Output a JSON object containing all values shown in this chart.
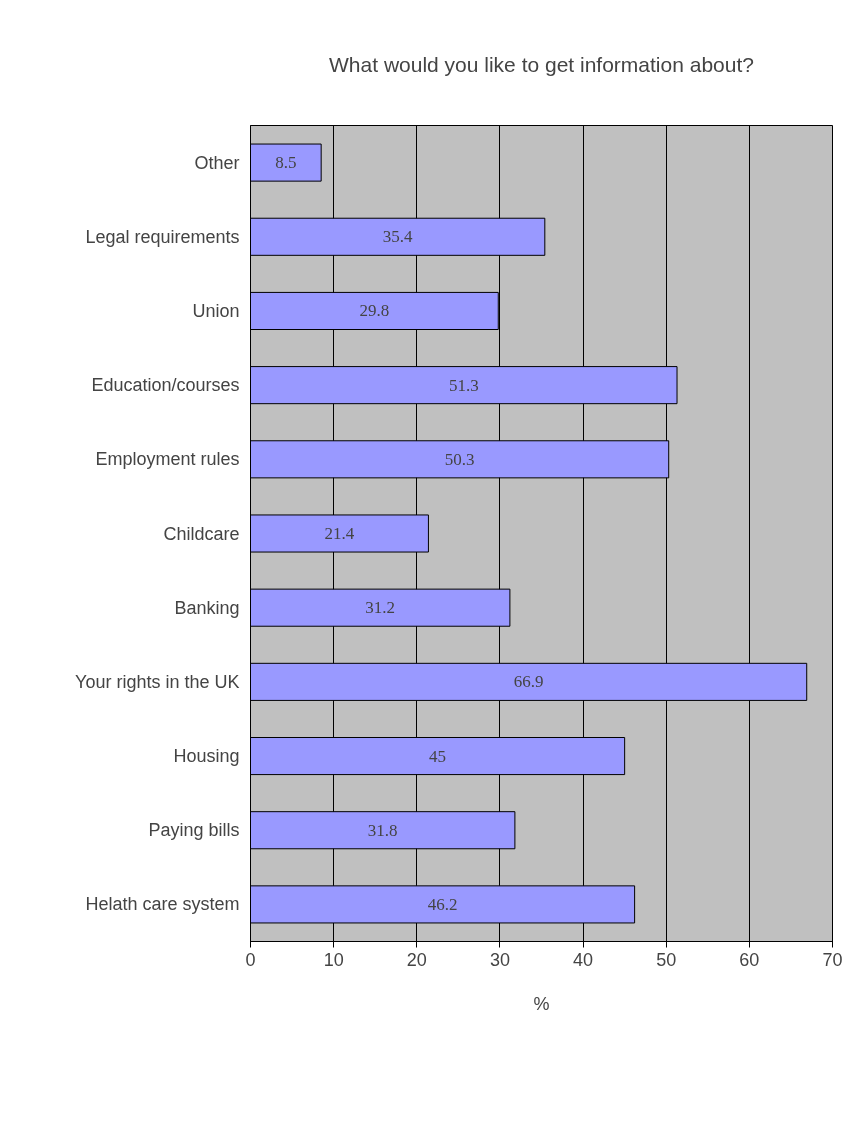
{
  "chart_data": {
    "type": "bar",
    "orientation": "horizontal",
    "title": "What would you like to get information about?",
    "xlabel": "%",
    "categories": [
      "Other",
      "Legal requirements",
      "Union",
      "Education/courses",
      "Employment rules",
      "Childcare",
      "Banking",
      "Your rights in the UK",
      "Housing",
      "Paying bills",
      "Helath care system"
    ],
    "values": [
      8.5,
      35.4,
      29.8,
      51.3,
      50.3,
      21.4,
      31.2,
      66.9,
      45,
      31.8,
      46.2
    ],
    "color": "#9999ff",
    "xlim": [
      0,
      70
    ],
    "xticks": [
      0,
      10,
      20,
      30,
      40,
      50,
      60,
      70
    ],
    "grid": "x",
    "data_labels": true
  }
}
